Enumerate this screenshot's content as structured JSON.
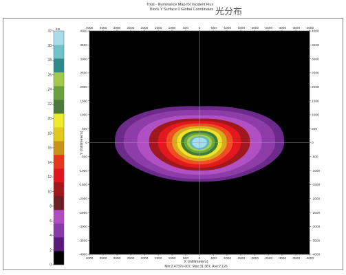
{
  "chart_data": {
    "type": "heatmap",
    "title_line1": "Total - Illuminance Map for Incident Flux",
    "title_line2": "Block Y Surface 0    Global Coordinates",
    "chinese_label": "光分布",
    "xlabel": "X (millimeters)",
    "ylabel": "Y (millimeters)",
    "stats": "Min:2.4737e-007, Max:31.387, Ave:2.126",
    "colorbar_unit": "lux",
    "xlim": [
      4000,
      -4000
    ],
    "ylim": [
      -4000,
      4000
    ],
    "x_ticks": [
      4000,
      3500,
      3000,
      2500,
      2000,
      1500,
      1000,
      500,
      0,
      -500,
      -1000,
      -1500,
      -2000,
      -2500,
      -3000,
      -3500,
      -4000
    ],
    "y_ticks": [
      4000,
      3500,
      3000,
      2500,
      2000,
      1500,
      1000,
      500,
      0,
      -500,
      -1000,
      -1500,
      -2000,
      -2500,
      -3000,
      -3500,
      -4000
    ],
    "colorbar_ticks": [
      0,
      2,
      4,
      6,
      8,
      10,
      12,
      14,
      16,
      18,
      20,
      22,
      24,
      26,
      28,
      30,
      32
    ],
    "colorbar_colors": [
      "#000000",
      "#5a1a7a",
      "#8a3aa8",
      "#b04ec0",
      "#6b1e24",
      "#a0181c",
      "#e0161c",
      "#e8361e",
      "#c89418",
      "#e2c81c",
      "#f0e82a",
      "#4c7a3a",
      "#6aa03e",
      "#a0c84a",
      "#2e8a88",
      "#70c2c8",
      "#a8dce8"
    ],
    "contours": [
      {
        "level": 2,
        "color": "#6b2a8c",
        "w": 2850,
        "top": 1400,
        "bottom": 1400,
        "tilt": 0.8
      },
      {
        "level": 4,
        "color": "#8e3ca8",
        "w": 2550,
        "top": 1250,
        "bottom": 1300,
        "tilt": 0.7
      },
      {
        "level": 6,
        "color": "#b050c2",
        "w": 2100,
        "top": 1050,
        "bottom": 1150,
        "tilt": 0.6
      },
      {
        "level": 8,
        "color": "#a0181e",
        "w": 1700,
        "top": 920,
        "bottom": 1000,
        "tilt": 0.5
      },
      {
        "level": 10,
        "color": "#e3171e",
        "w": 1400,
        "top": 820,
        "bottom": 900,
        "tilt": 0.4
      },
      {
        "level": 12,
        "color": "#ee4e22",
        "w": 1120,
        "top": 720,
        "bottom": 780,
        "tilt": 0.3
      },
      {
        "level": 14,
        "color": "#d8a81e",
        "w": 920,
        "top": 620,
        "bottom": 660,
        "tilt": 0.2
      },
      {
        "level": 16,
        "color": "#eee22a",
        "w": 760,
        "top": 530,
        "bottom": 560,
        "tilt": 0.15
      },
      {
        "level": 18,
        "color": "#3e7a38",
        "w": 620,
        "top": 440,
        "bottom": 470,
        "tilt": 0.1
      },
      {
        "level": 20,
        "color": "#6aa63e",
        "w": 520,
        "top": 360,
        "bottom": 380,
        "tilt": 0.05
      },
      {
        "level": 22,
        "color": "#a6d04e",
        "w": 420,
        "top": 290,
        "bottom": 300,
        "tilt": 0.0
      },
      {
        "level": 26,
        "color": "#5ab8c0",
        "w": 330,
        "top": 230,
        "bottom": 240,
        "tilt": 0.0
      },
      {
        "level": 30,
        "color": "#a8dcea",
        "w": 250,
        "top": 180,
        "bottom": 190,
        "tilt": 0.0
      }
    ]
  }
}
